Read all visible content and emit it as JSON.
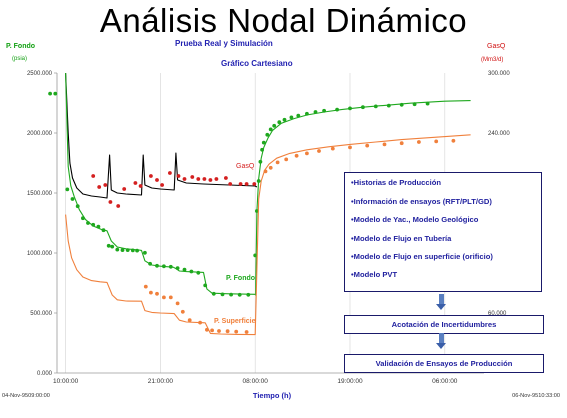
{
  "slide_title": "Análisis Nodal Dinámico",
  "subtitle1": "Prueba  Real y Simulación",
  "subtitle2": "Gráfico Cartesiano",
  "legend_items": [
    "•Historias de Producción",
    "•Información de ensayos (RFT/PLT/GD)",
    "•Modelo de Yac., Modelo Geológico",
    "•Modelo de Flujo en Tubería",
    "•Modelo de Flujo en superficie (orificio)",
    "•Modelo PVT"
  ],
  "flow_box_1": "Acotación  de Incertidumbres",
  "flow_box_2": "Validación  de Ensayos de Producción",
  "colors": {
    "gas": "#d42020",
    "pfondo": "#1ea81e",
    "psup": "#f0803c",
    "sim": "#000000",
    "title_blue": "#1f1fb0"
  },
  "chart_data": {
    "type": "line",
    "title": "",
    "xlabel": "Tiempo (h)",
    "x_tick_labels": [
      "10:00:00",
      "21:00:00",
      "08:00:00",
      "19:00:00",
      "06:00:00"
    ],
    "x_start_label": "04-Nov-9509:00:00",
    "x_end_label": "06-Nov-9510:33:00",
    "xlim": [
      0,
      49.55
    ],
    "x_ticks": [
      1,
      12,
      23,
      34,
      45
    ],
    "left_axis": {
      "title": "P. Fondo",
      "unit": "(psia)",
      "ylim": [
        0,
        2500
      ],
      "ticks": [
        0,
        500,
        1000,
        1500,
        2000,
        2500
      ],
      "tick_labels": [
        "0.000",
        "500.000",
        "1000.000",
        "1500.000",
        "2000.000",
        "2500.000"
      ]
    },
    "right_axis": {
      "title": "GasQ",
      "unit": "(Mm3/d)",
      "ylim": [
        0,
        300
      ],
      "ticks": [
        60,
        240,
        300
      ],
      "tick_labels": [
        "60.000",
        "240.000",
        "300.000"
      ]
    },
    "series_labels": {
      "gas": "GasQ",
      "pfondo": "P. Fondo",
      "psup": "P. Superficie"
    },
    "series": [
      {
        "name": "GasQ",
        "axis": "right",
        "points_x": [
          4.2,
          4.9,
          5.6,
          6.2,
          7.1,
          7.8,
          9.1,
          9.7,
          10.9,
          11.6,
          12.2,
          13.1,
          14.1,
          14.8,
          15.7,
          16.4,
          17.1,
          17.8,
          18.5,
          19.6,
          20.1,
          21.3,
          22.0,
          22.9
        ],
        "points_y": [
          197,
          186,
          188,
          171,
          167,
          184,
          190,
          187,
          197,
          193,
          188,
          200,
          197,
          194,
          196,
          194,
          194,
          193,
          194,
          195,
          189,
          189,
          189,
          189
        ],
        "sim_x": [
          1.0,
          1.3,
          1.5,
          1.8,
          2.3,
          3.0,
          4.0,
          5.0,
          5.8,
          6.1,
          6.3,
          7.0,
          8.0,
          9.8,
          10.0,
          10.2,
          11.0,
          12.0,
          13.6,
          13.8,
          14.0,
          15.0,
          17.0,
          20.0,
          23.0,
          23.2
        ],
        "sim_y": [
          300,
          240,
          210,
          195,
          185,
          179,
          177,
          176,
          175,
          218,
          183,
          180,
          179,
          178,
          218,
          188,
          185,
          184,
          183,
          220,
          193,
          190,
          189,
          188,
          187,
          186
        ]
      },
      {
        "name": "P. Fondo",
        "axis": "left",
        "points_x": [
          -0.8,
          -0.2,
          1.2,
          1.8,
          2.4,
          3.0,
          3.6,
          4.2,
          4.8,
          5.4,
          6.0,
          6.4,
          7.0,
          7.6,
          8.2,
          8.8,
          9.3,
          10.2,
          10.8,
          11.6,
          12.4,
          13.2,
          14.0,
          14.8,
          15.6,
          16.4,
          17.2,
          18.2,
          19.2,
          20.2,
          21.2,
          22.2,
          23.0,
          23.2,
          23.4,
          23.6,
          23.8,
          24.0,
          24.4,
          24.8,
          25.2,
          25.8,
          26.4,
          27.2,
          28.0,
          29.0,
          30.0,
          31.0,
          32.5,
          34.0,
          35.5,
          37.0,
          38.5,
          40.0,
          41.5,
          43.0
        ],
        "points_y": [
          2328,
          2328,
          1530,
          1450,
          1390,
          1290,
          1250,
          1235,
          1220,
          1190,
          1060,
          1053,
          1028,
          1024,
          1024,
          1022,
          1020,
          1002,
          910,
          893,
          889,
          885,
          874,
          861,
          846,
          835,
          730,
          660,
          655,
          653,
          652,
          652,
          980,
          1350,
          1600,
          1760,
          1860,
          1920,
          1985,
          2030,
          2060,
          2090,
          2110,
          2130,
          2145,
          2160,
          2175,
          2185,
          2195,
          2205,
          2215,
          2222,
          2228,
          2235,
          2240,
          2245
        ],
        "sim_x": [
          1.0,
          1.3,
          1.6,
          2.0,
          2.6,
          3.3,
          4.2,
          5.2,
          5.8,
          6.3,
          7.0,
          8.0,
          9.5,
          9.8,
          10.2,
          11.0,
          12.0,
          13.5,
          13.8,
          14.2,
          15.0,
          16.5,
          17.0,
          17.4,
          18.0,
          20.0,
          23.0,
          23.05,
          23.2,
          23.4,
          23.7,
          24.0,
          24.5,
          25.0,
          26.0,
          27.5,
          29.0,
          31.0,
          33.0,
          35.5,
          38.0,
          41.0,
          45.0,
          48.0
        ],
        "sim_y": [
          2500,
          1720,
          1560,
          1470,
          1360,
          1280,
          1225,
          1195,
          1185,
          1100,
          1050,
          1035,
          1025,
          1022,
          935,
          900,
          890,
          882,
          870,
          850,
          845,
          840,
          838,
          700,
          665,
          660,
          656,
          650,
          1350,
          1620,
          1790,
          1880,
          1960,
          2020,
          2080,
          2120,
          2150,
          2175,
          2195,
          2215,
          2230,
          2248,
          2265,
          2270
        ]
      },
      {
        "name": "P. Superficie",
        "axis": "left",
        "points_x": [
          10.3,
          10.9,
          11.6,
          12.4,
          13.2,
          14.0,
          14.6,
          15.4,
          16.6,
          17.4,
          18.0,
          18.8,
          19.8,
          20.8,
          22.0,
          24.2,
          24.8,
          25.6,
          26.6,
          27.8,
          29.0,
          30.4,
          32.0,
          34.0,
          36.0,
          38.0,
          40.0,
          42.0,
          44.0,
          46.0
        ],
        "points_y": [
          720,
          670,
          660,
          630,
          630,
          580,
          510,
          440,
          420,
          360,
          355,
          350,
          348,
          345,
          342,
          1680,
          1710,
          1755,
          1780,
          1810,
          1830,
          1850,
          1870,
          1880,
          1895,
          1905,
          1915,
          1925,
          1930,
          1935
        ],
        "sim_x": [
          1.0,
          1.3,
          1.7,
          2.3,
          3.0,
          4.0,
          5.0,
          5.8,
          6.4,
          7.0,
          8.0,
          9.8,
          10.2,
          11.0,
          12.0,
          13.6,
          14.2,
          15.0,
          16.5,
          17.2,
          17.8,
          19.0,
          21.0,
          23.0,
          23.4,
          23.7,
          24.1,
          24.6,
          25.5,
          27.0,
          29.0,
          31.5,
          34.0,
          37.0,
          40.0,
          44.0,
          48.0
        ],
        "sim_y": [
          1320,
          1100,
          960,
          860,
          800,
          770,
          760,
          755,
          650,
          610,
          600,
          598,
          520,
          505,
          500,
          495,
          440,
          425,
          420,
          418,
          330,
          325,
          322,
          320,
          1450,
          1600,
          1690,
          1740,
          1790,
          1830,
          1860,
          1885,
          1905,
          1925,
          1945,
          1965,
          1985
        ]
      }
    ],
    "grid": "vertical",
    "legend": "none",
    "annotations": []
  }
}
